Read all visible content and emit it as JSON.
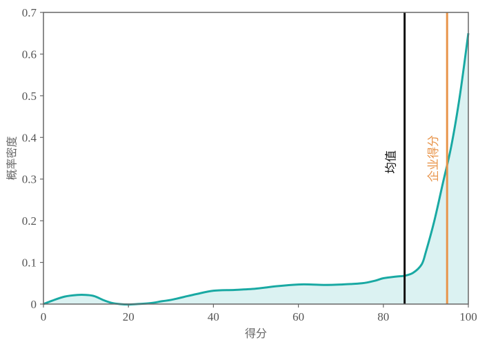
{
  "chart_data": {
    "type": "area",
    "title": "",
    "xlabel": "得分",
    "ylabel": "概率密度",
    "xlim": [
      0,
      100
    ],
    "ylim": [
      0,
      0.7
    ],
    "x_ticks": [
      0,
      20,
      40,
      60,
      80,
      100
    ],
    "y_ticks": [
      0,
      0.1,
      0.2,
      0.3,
      0.4,
      0.5,
      0.6,
      0.7
    ],
    "x_tick_labels": [
      "0",
      "20",
      "40",
      "60",
      "80",
      "100"
    ],
    "y_tick_labels": [
      "0",
      "0.1",
      "0.2",
      "0.3",
      "0.4",
      "0.5",
      "0.6",
      "0.7"
    ],
    "grid": false,
    "series": [
      {
        "color": "#19a9a3",
        "fill": "#dbf2f2",
        "x": [
          0,
          2,
          5,
          8,
          10,
          12,
          14,
          16,
          18,
          20,
          22,
          25,
          28,
          30,
          33,
          36,
          40,
          45,
          50,
          55,
          60,
          63,
          66,
          70,
          75,
          78,
          80,
          83,
          85,
          87,
          89,
          90,
          92,
          94,
          96,
          98,
          100
        ],
        "y": [
          0.0,
          0.008,
          0.018,
          0.022,
          0.022,
          0.019,
          0.01,
          0.003,
          0.0,
          -0.001,
          0.0,
          0.002,
          0.007,
          0.01,
          0.017,
          0.024,
          0.032,
          0.034,
          0.037,
          0.043,
          0.047,
          0.047,
          0.046,
          0.047,
          0.05,
          0.056,
          0.062,
          0.066,
          0.068,
          0.075,
          0.095,
          0.125,
          0.2,
          0.29,
          0.38,
          0.5,
          0.65
        ]
      }
    ],
    "vlines": [
      {
        "x": 85,
        "label": "均值",
        "color": "#111111"
      },
      {
        "x": 95,
        "label": "企业得分",
        "color": "#e8944a"
      }
    ]
  }
}
